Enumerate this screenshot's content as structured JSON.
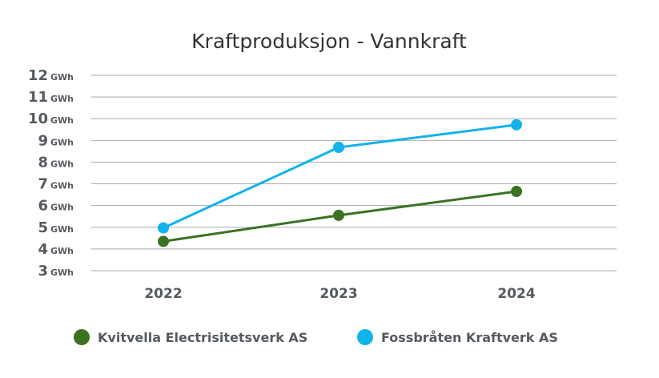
{
  "chart_data": {
    "type": "line",
    "title": "Kraftproduksjon - Vannkraft",
    "categories": [
      "2022",
      "2023",
      "2024"
    ],
    "y_unit": "GWh",
    "ylim": [
      3,
      12
    ],
    "yticks": [
      3,
      4,
      5,
      6,
      7,
      8,
      9,
      10,
      11,
      12
    ],
    "grid": true,
    "legend_position": "bottom",
    "series": [
      {
        "name": "Kvitvella Electrisitetsverk AS",
        "color": "#3b7222",
        "values": [
          4.35,
          5.55,
          6.65
        ]
      },
      {
        "name": "Fossbråten Kraftverk AS",
        "color": "#12b2ea",
        "values": [
          4.97,
          8.68,
          9.72
        ]
      }
    ]
  }
}
